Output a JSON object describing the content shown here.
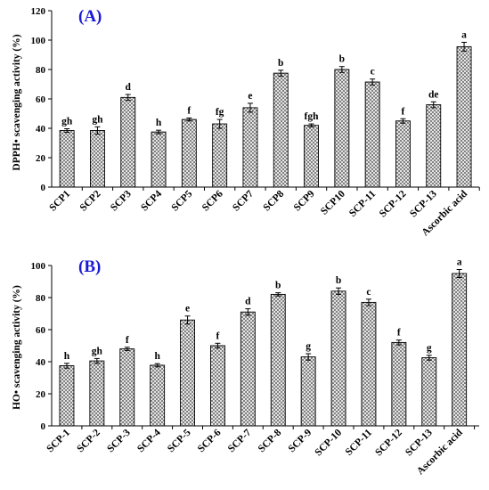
{
  "chart_data": [
    {
      "type": "bar",
      "title": "(A)",
      "title_color": "#1a1ad6",
      "ylabel": "DPPH• scavenging activity (%)",
      "ylim": [
        0,
        120
      ],
      "yticks": [
        0,
        20,
        40,
        60,
        80,
        100,
        120
      ],
      "categories": [
        "SCP1",
        "SCP2",
        "SCP3",
        "SCP4",
        "SCP5",
        "SCP6",
        "SCP7",
        "SCP8",
        "SCP9",
        "SCP10",
        "SCP-11",
        "SCP-12",
        "SCP-13",
        "Ascorbic acid"
      ],
      "values": [
        38.5,
        38.5,
        61,
        37.5,
        46,
        43,
        54,
        77.5,
        42,
        80,
        71.5,
        45,
        56,
        95.5
      ],
      "errors": [
        1.2,
        2.5,
        2.0,
        1.2,
        1.0,
        3.0,
        3.0,
        2.0,
        1.0,
        2.0,
        2.0,
        1.5,
        2.0,
        3.0
      ],
      "letters": [
        "gh",
        "gh",
        "d",
        "h",
        "f",
        "fg",
        "e",
        "b",
        "fgh",
        "b",
        "c",
        "f",
        "de",
        "a"
      ],
      "bar_pattern": "crosshatch",
      "grid": false
    },
    {
      "type": "bar",
      "title": "(B)",
      "title_color": "#1a1ad6",
      "ylabel": "HO• scavenging activity (%)",
      "ylim": [
        0,
        100
      ],
      "yticks": [
        0,
        20,
        40,
        60,
        80,
        100
      ],
      "categories": [
        "SCP-1",
        "SCP-2",
        "SCP-3",
        "SCP-4",
        "SCP-5",
        "SCP-6",
        "SCP-7",
        "SCP-8",
        "SCP-9",
        "SCP-10",
        "SCP-11",
        "SCP-12",
        "SCP-13",
        "Ascorbic acid"
      ],
      "values": [
        37.5,
        40.5,
        48,
        37.8,
        66,
        50,
        71,
        82,
        43,
        84,
        77,
        52,
        42.5,
        95
      ],
      "errors": [
        1.5,
        1.5,
        1.0,
        1.0,
        2.5,
        1.5,
        2.0,
        1.0,
        2.0,
        2.0,
        2.0,
        1.5,
        1.5,
        2.5
      ],
      "letters": [
        "h",
        "gh",
        "f",
        "h",
        "e",
        "f",
        "d",
        "b",
        "g",
        "b",
        "c",
        "f",
        "g",
        "a"
      ],
      "bar_pattern": "crosshatch",
      "grid": false
    }
  ]
}
